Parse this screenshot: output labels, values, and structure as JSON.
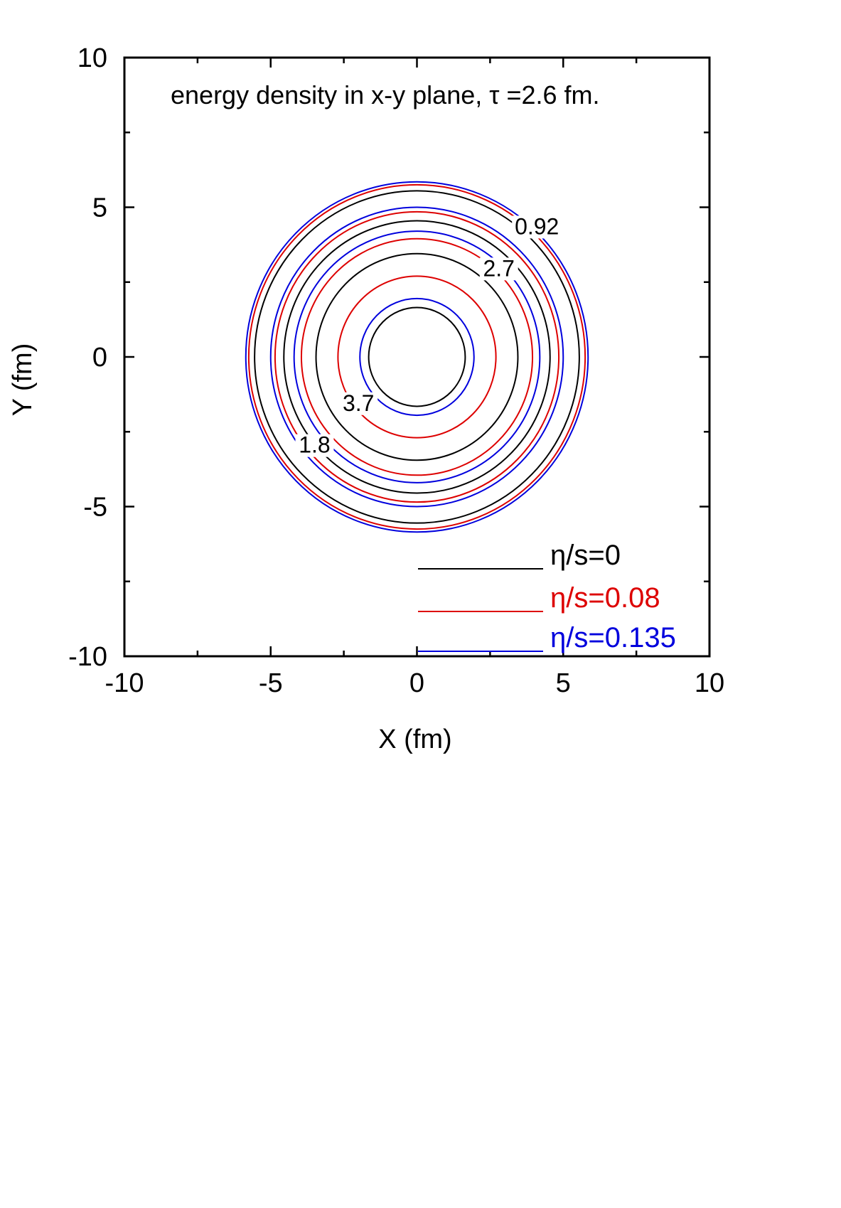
{
  "chart_data": {
    "type": "contour",
    "title": "energy density in x-y plane, τ =2.6 fm.",
    "xlabel": "X (fm)",
    "ylabel": "Y (fm)",
    "xlim": [
      -10,
      10
    ],
    "ylim": [
      -10,
      10
    ],
    "x_ticks": [
      -10,
      -5,
      0,
      5,
      10
    ],
    "y_ticks": [
      -10,
      -5,
      0,
      5,
      10
    ],
    "x_tick_labels": [
      "-10",
      "-5",
      "0",
      "5",
      "10"
    ],
    "y_tick_labels": [
      "-10",
      "-5",
      "0",
      "5",
      "10"
    ],
    "minor_tick_step": 2.5,
    "grid": false,
    "legend_position": "bottom-right",
    "series": [
      {
        "name": "η/s=0",
        "color": "#000000",
        "contour_radii": [
          5.55,
          4.55,
          3.45,
          1.65
        ]
      },
      {
        "name": "η/s=0.08",
        "color": "#dd0000",
        "contour_radii": [
          5.75,
          4.85,
          3.95,
          2.7
        ]
      },
      {
        "name": "η/s=0.135",
        "color": "#0000dd",
        "contour_radii": [
          5.85,
          5.0,
          4.2,
          1.95
        ]
      }
    ],
    "contour_labels": [
      {
        "text": "0.92",
        "x": 4.1,
        "y": 4.1
      },
      {
        "text": "2.7",
        "x": 2.8,
        "y": 2.7
      },
      {
        "text": "3.7",
        "x": -2.0,
        "y": -1.8
      },
      {
        "text": "1.8",
        "x": -3.5,
        "y": -3.2
      }
    ]
  }
}
